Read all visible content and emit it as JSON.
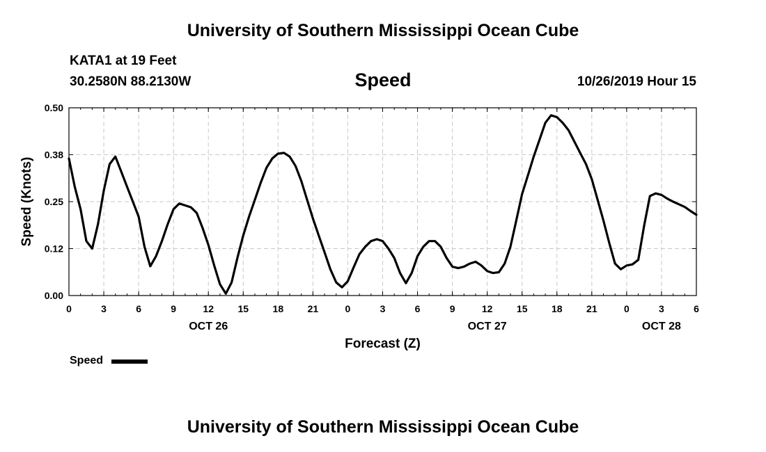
{
  "header": {
    "title": "University of Southern Mississippi Ocean Cube",
    "station": "KATA1 at 19 Feet",
    "coords": "30.2580N 88.2130W",
    "parameter": "Speed",
    "datetime": "10/26/2019 Hour 15"
  },
  "footer": {
    "title": "University of Southern Mississippi Ocean Cube"
  },
  "legend": {
    "label": "Speed",
    "color": "#000000"
  },
  "chart_data": {
    "type": "line",
    "title": "Speed",
    "xlabel": "Forecast (Z)",
    "ylabel": "Speed (Knots)",
    "xlim": [
      0,
      54
    ],
    "ylim": [
      0,
      0.5
    ],
    "grid": true,
    "legend_position": "bottom-left",
    "x_ticks": [
      {
        "x": 0,
        "label": "0"
      },
      {
        "x": 3,
        "label": "3"
      },
      {
        "x": 6,
        "label": "6"
      },
      {
        "x": 9,
        "label": "9"
      },
      {
        "x": 12,
        "label": "12"
      },
      {
        "x": 15,
        "label": "15"
      },
      {
        "x": 18,
        "label": "18"
      },
      {
        "x": 21,
        "label": "21"
      },
      {
        "x": 24,
        "label": "0"
      },
      {
        "x": 27,
        "label": "3"
      },
      {
        "x": 30,
        "label": "6"
      },
      {
        "x": 33,
        "label": "9"
      },
      {
        "x": 36,
        "label": "12"
      },
      {
        "x": 39,
        "label": "15"
      },
      {
        "x": 42,
        "label": "18"
      },
      {
        "x": 45,
        "label": "21"
      },
      {
        "x": 48,
        "label": "0"
      },
      {
        "x": 51,
        "label": "3"
      },
      {
        "x": 54,
        "label": "6"
      }
    ],
    "date_labels": [
      {
        "x": 12,
        "label": "OCT 26"
      },
      {
        "x": 36,
        "label": "OCT 27"
      },
      {
        "x": 51,
        "label": "OCT 28"
      }
    ],
    "y_ticks": [
      {
        "y": 0.0,
        "label": "0.00"
      },
      {
        "y": 0.125,
        "label": "0.12"
      },
      {
        "y": 0.25,
        "label": "0.25"
      },
      {
        "y": 0.375,
        "label": "0.38"
      },
      {
        "y": 0.5,
        "label": "0.50"
      }
    ],
    "series": [
      {
        "name": "Speed",
        "color": "#000000",
        "points": [
          [
            0,
            0.365
          ],
          [
            0.5,
            0.29
          ],
          [
            1,
            0.23
          ],
          [
            1.5,
            0.145
          ],
          [
            2,
            0.125
          ],
          [
            2.5,
            0.19
          ],
          [
            3,
            0.28
          ],
          [
            3.5,
            0.35
          ],
          [
            4,
            0.37
          ],
          [
            4.5,
            0.33
          ],
          [
            5,
            0.29
          ],
          [
            5.5,
            0.25
          ],
          [
            6,
            0.21
          ],
          [
            6.5,
            0.13
          ],
          [
            7,
            0.078
          ],
          [
            7.5,
            0.105
          ],
          [
            8,
            0.145
          ],
          [
            8.5,
            0.19
          ],
          [
            9,
            0.23
          ],
          [
            9.5,
            0.245
          ],
          [
            10,
            0.24
          ],
          [
            10.5,
            0.235
          ],
          [
            11,
            0.22
          ],
          [
            11.5,
            0.18
          ],
          [
            12,
            0.135
          ],
          [
            12.5,
            0.08
          ],
          [
            13,
            0.03
          ],
          [
            13.5,
            0.005
          ],
          [
            14,
            0.035
          ],
          [
            14.5,
            0.1
          ],
          [
            15,
            0.16
          ],
          [
            15.5,
            0.21
          ],
          [
            16,
            0.255
          ],
          [
            16.5,
            0.3
          ],
          [
            17,
            0.34
          ],
          [
            17.5,
            0.365
          ],
          [
            18,
            0.378
          ],
          [
            18.5,
            0.38
          ],
          [
            19,
            0.37
          ],
          [
            19.5,
            0.345
          ],
          [
            20,
            0.305
          ],
          [
            20.5,
            0.255
          ],
          [
            21,
            0.205
          ],
          [
            21.5,
            0.16
          ],
          [
            22,
            0.115
          ],
          [
            22.5,
            0.07
          ],
          [
            23,
            0.035
          ],
          [
            23.5,
            0.022
          ],
          [
            24,
            0.038
          ],
          [
            24.5,
            0.075
          ],
          [
            25,
            0.11
          ],
          [
            25.5,
            0.13
          ],
          [
            26,
            0.145
          ],
          [
            26.5,
            0.15
          ],
          [
            27,
            0.145
          ],
          [
            27.5,
            0.125
          ],
          [
            28,
            0.1
          ],
          [
            28.5,
            0.06
          ],
          [
            29,
            0.033
          ],
          [
            29.5,
            0.06
          ],
          [
            30,
            0.105
          ],
          [
            30.5,
            0.13
          ],
          [
            31,
            0.145
          ],
          [
            31.5,
            0.145
          ],
          [
            32,
            0.13
          ],
          [
            32.5,
            0.1
          ],
          [
            33,
            0.077
          ],
          [
            33.5,
            0.073
          ],
          [
            34,
            0.077
          ],
          [
            34.5,
            0.085
          ],
          [
            35,
            0.09
          ],
          [
            35.5,
            0.08
          ],
          [
            36,
            0.065
          ],
          [
            36.5,
            0.06
          ],
          [
            37,
            0.062
          ],
          [
            37.5,
            0.085
          ],
          [
            38,
            0.13
          ],
          [
            38.5,
            0.2
          ],
          [
            39,
            0.27
          ],
          [
            39.5,
            0.32
          ],
          [
            40,
            0.37
          ],
          [
            40.5,
            0.415
          ],
          [
            41,
            0.46
          ],
          [
            41.5,
            0.48
          ],
          [
            42,
            0.475
          ],
          [
            42.5,
            0.46
          ],
          [
            43,
            0.44
          ],
          [
            43.5,
            0.41
          ],
          [
            44,
            0.38
          ],
          [
            44.5,
            0.35
          ],
          [
            45,
            0.31
          ],
          [
            45.5,
            0.255
          ],
          [
            46,
            0.2
          ],
          [
            46.5,
            0.14
          ],
          [
            47,
            0.085
          ],
          [
            47.5,
            0.07
          ],
          [
            48,
            0.08
          ],
          [
            48.5,
            0.083
          ],
          [
            49,
            0.095
          ],
          [
            49.5,
            0.185
          ],
          [
            50,
            0.265
          ],
          [
            50.5,
            0.272
          ],
          [
            51,
            0.268
          ],
          [
            51.5,
            0.258
          ],
          [
            52,
            0.25
          ],
          [
            52.5,
            0.243
          ],
          [
            53,
            0.236
          ],
          [
            53.5,
            0.225
          ],
          [
            54,
            0.215
          ]
        ]
      }
    ]
  }
}
